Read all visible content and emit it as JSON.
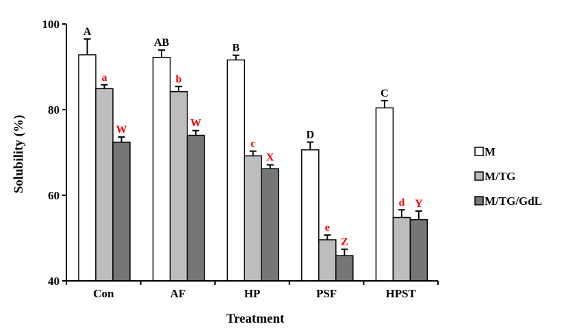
{
  "chart_data": {
    "type": "bar",
    "title": "",
    "xlabel": "Treatment",
    "ylabel": "Solubility (%)",
    "ylim": [
      40,
      100
    ],
    "yticks": [
      40,
      60,
      80,
      100
    ],
    "grid": false,
    "legend_position": "right",
    "categories": [
      "Con",
      "AF",
      "HP",
      "PSF",
      "HPST"
    ],
    "series": [
      {
        "name": "M",
        "fill": "#ffffff",
        "values": [
          92.8,
          92.2,
          91.6,
          70.6,
          80.4
        ],
        "errors": [
          3.7,
          1.7,
          1.1,
          1.8,
          1.7
        ],
        "labels": [
          "A",
          "AB",
          "B",
          "D",
          "C"
        ],
        "label_color": "#000000"
      },
      {
        "name": "M/TG",
        "fill": "#bdbdbd",
        "values": [
          84.9,
          84.2,
          69.2,
          49.6,
          54.8
        ],
        "errors": [
          0.9,
          1.2,
          1.1,
          1.1,
          1.8
        ],
        "labels": [
          "a",
          "b",
          "c",
          "e",
          "d"
        ],
        "label_color": "#ff0000"
      },
      {
        "name": "M/TG/GdL",
        "fill": "#767676",
        "values": [
          72.4,
          74.0,
          66.2,
          45.9,
          54.3
        ],
        "errors": [
          1.2,
          1.1,
          0.9,
          1.5,
          2.0
        ],
        "labels": [
          "W",
          "W",
          "X",
          "Z",
          "Y"
        ],
        "label_color": "#ff0000"
      }
    ]
  }
}
